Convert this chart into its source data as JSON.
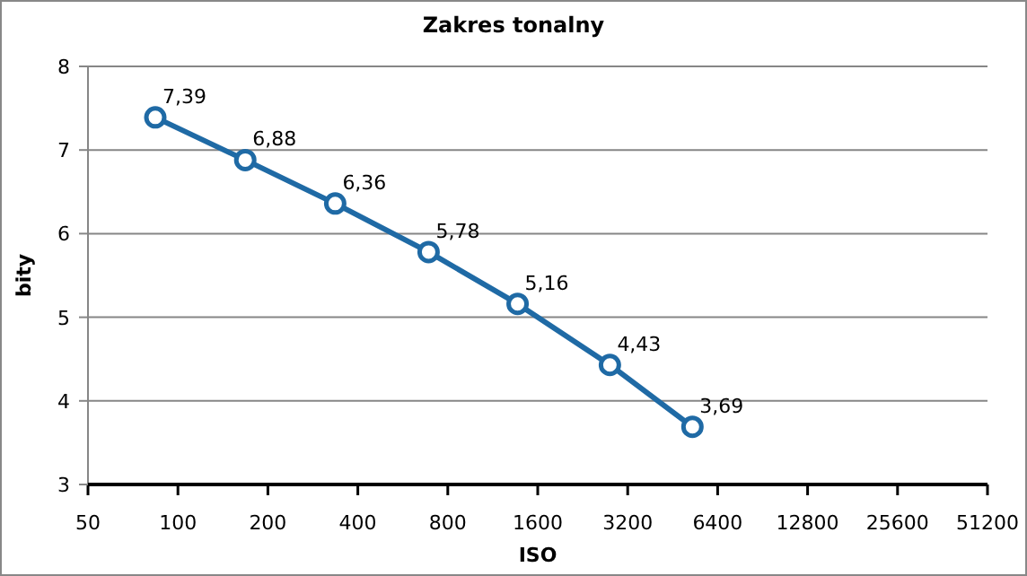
{
  "chart_data": {
    "type": "line",
    "title": "Zakres tonalny",
    "xlabel": "ISO",
    "ylabel": "bity",
    "x": [
      84,
      168,
      336,
      690,
      1370,
      2790,
      5270
    ],
    "series": [
      {
        "color": "#1f6aa5",
        "values": [
          7.39,
          6.88,
          6.36,
          5.78,
          5.16,
          4.43,
          3.69
        ],
        "value_labels": [
          "7,39",
          "6,88",
          "6,36",
          "5,78",
          "5,16",
          "4,43",
          "3,69"
        ]
      }
    ],
    "log": "x",
    "xlim": [
      50,
      51200
    ],
    "xticks": [
      50,
      100,
      200,
      400,
      800,
      1600,
      3200,
      6400,
      12800,
      25600,
      51200
    ],
    "ylim": [
      3,
      8
    ],
    "yticks": [
      3,
      4,
      5,
      6,
      7,
      8
    ],
    "grid": "y",
    "marker": "circle",
    "line_style": "solid"
  }
}
